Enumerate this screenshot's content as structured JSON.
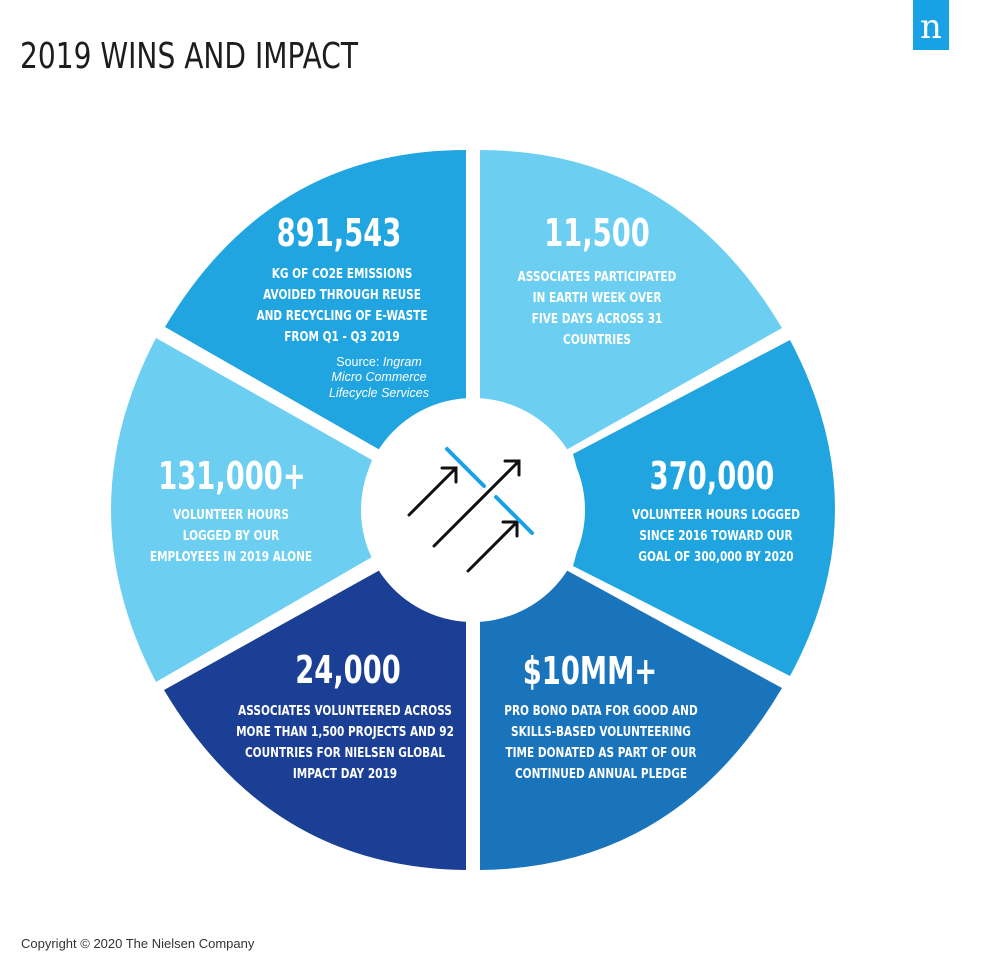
{
  "title": "2019 WINS AND IMPACT",
  "logo": {
    "letter": "n"
  },
  "colors": {
    "dark_blue": "#1b3f94",
    "medium_blue": "#1a74bb",
    "bright_blue": "#20a5e1",
    "light_blue": "#6ccff2",
    "arrow": "#111111",
    "arrow_accent": "#19a1e6"
  },
  "segments": [
    {
      "stat": "891,543",
      "lines": [
        "KG OF CO2E EMISSIONS",
        "AVOIDED THROUGH REUSE",
        "AND RECYCLING OF E-WASTE",
        "FROM Q1 - Q3 2019"
      ],
      "source_prefix": "Source:",
      "source_lines": [
        "Ingram",
        "Micro Commerce",
        "Lifecycle Services"
      ]
    },
    {
      "stat": "11,500",
      "lines": [
        "ASSOCIATES PARTICIPATED",
        "IN EARTH WEEK OVER",
        "FIVE DAYS ACROSS 31",
        "COUNTRIES"
      ]
    },
    {
      "stat": "370,000",
      "lines": [
        "VOLUNTEER HOURS LOGGED",
        "SINCE 2016 TOWARD OUR",
        "GOAL OF 300,000 BY 2020"
      ]
    },
    {
      "stat": "$10MM+",
      "lines": [
        "PRO BONO DATA FOR GOOD AND",
        "SKILLS-BASED VOLUNTEERING",
        "TIME DONATED AS PART OF OUR",
        "CONTINUED ANNUAL PLEDGE"
      ]
    },
    {
      "stat": "24,000",
      "lines": [
        "ASSOCIATES VOLUNTEERED ACROSS",
        "MORE THAN 1,500 PROJECTS AND 92",
        "COUNTRIES FOR NIELSEN GLOBAL",
        "IMPACT DAY 2019"
      ]
    },
    {
      "stat": "131,000+",
      "lines": [
        "VOLUNTEER HOURS",
        "LOGGED BY OUR",
        "EMPLOYEES IN 2019 ALONE"
      ]
    }
  ],
  "center_icon": "rising-arrows-icon",
  "copyright": "Copyright © 2020 The Nielsen Company"
}
